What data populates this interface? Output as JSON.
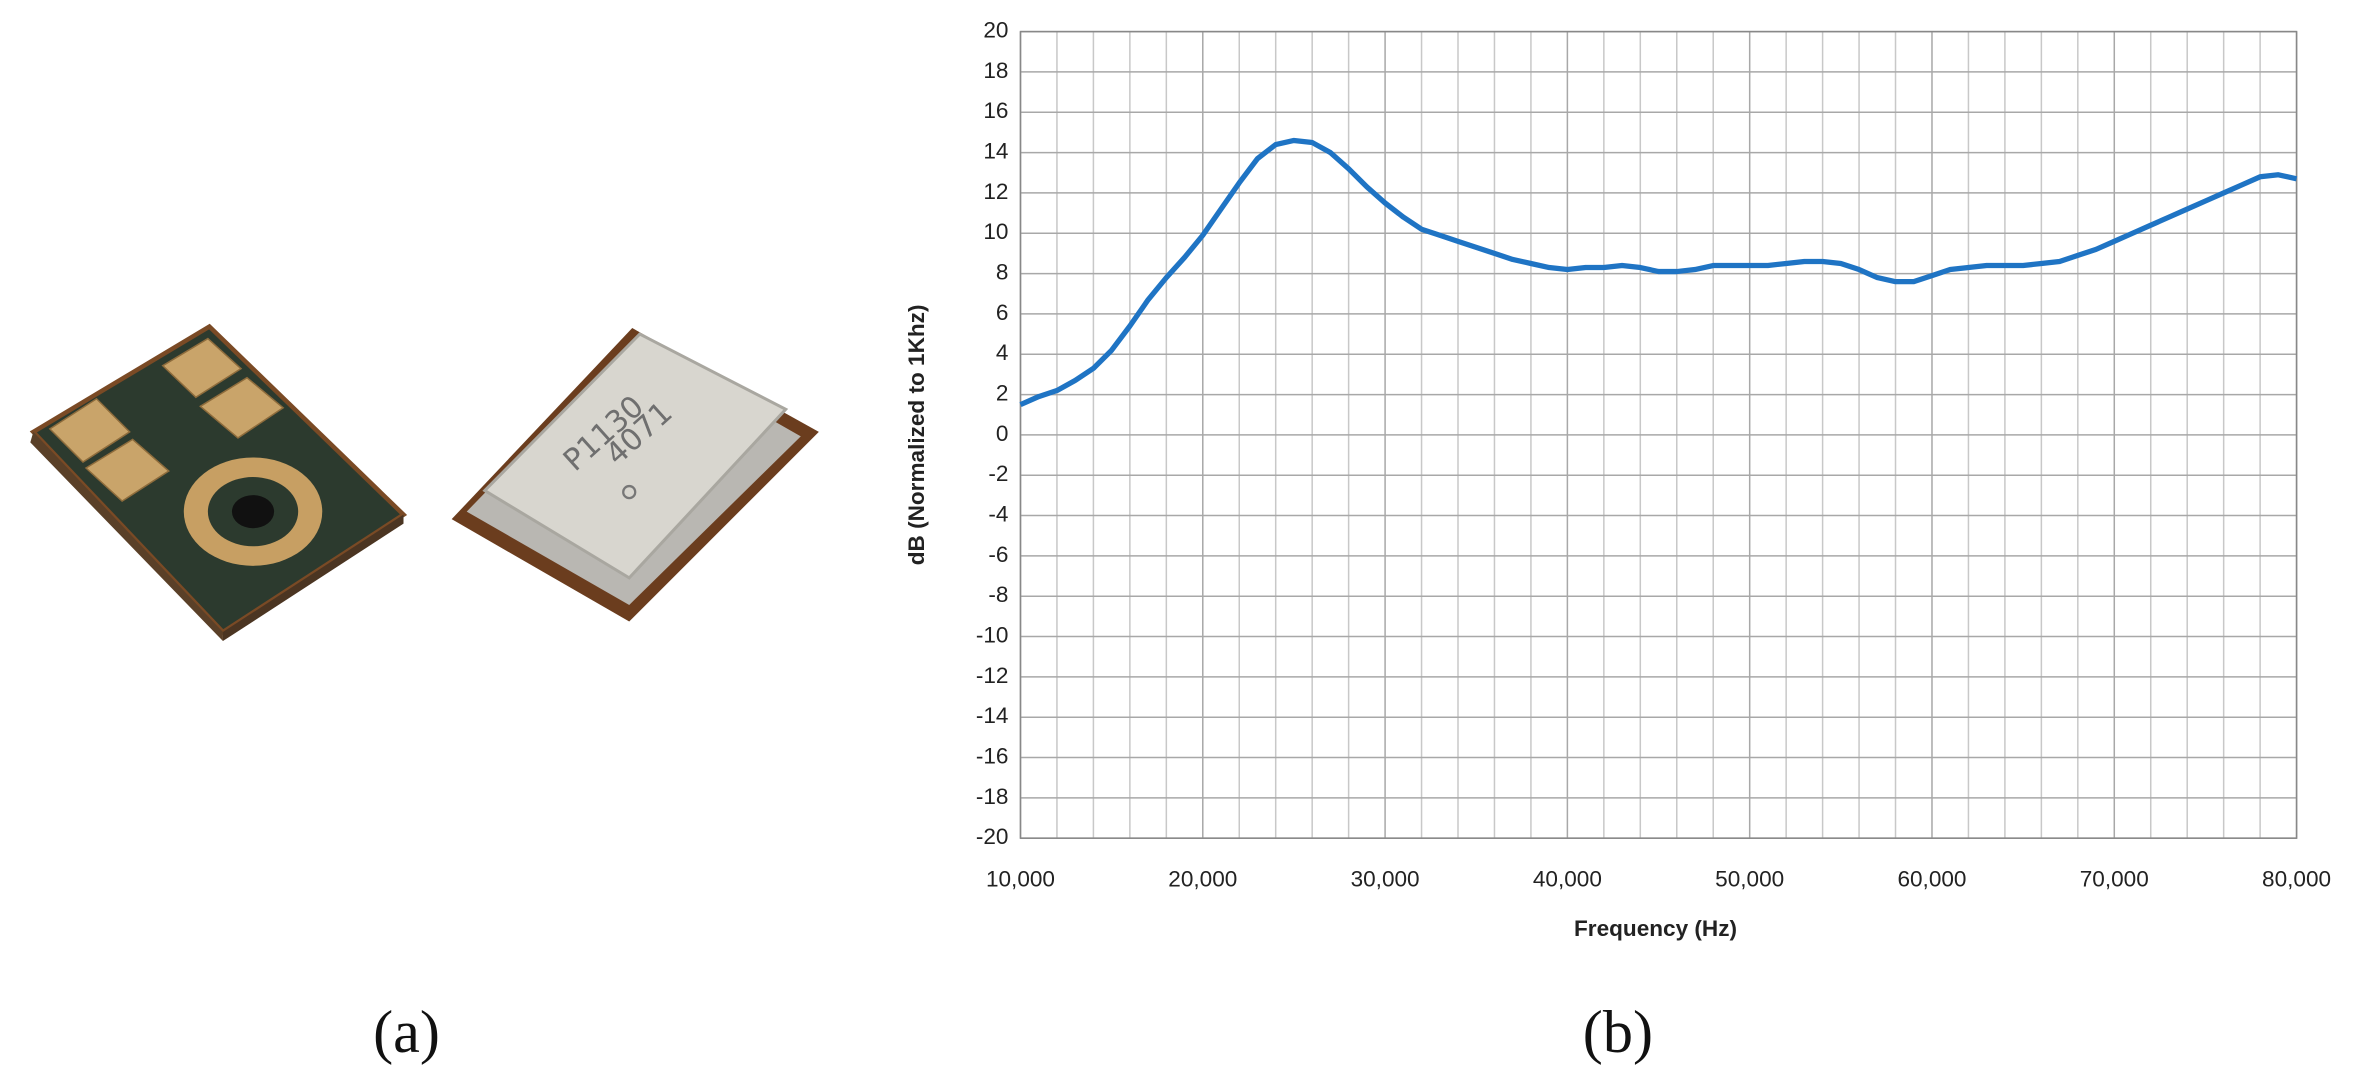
{
  "figure": {
    "panel_labels": [
      "(a)",
      "(b)"
    ],
    "device_markings": [
      "P1130",
      "4071"
    ]
  },
  "chart_data": {
    "type": "line",
    "xlabel": "Frequency (Hz)",
    "ylabel": "dB (Normalized to 1Khz)",
    "x": [
      10000,
      11000,
      12000,
      13000,
      14000,
      15000,
      16000,
      17000,
      18000,
      19000,
      20000,
      21000,
      22000,
      23000,
      24000,
      25000,
      26000,
      27000,
      28000,
      29000,
      30000,
      31000,
      32000,
      33000,
      34000,
      35000,
      36000,
      37000,
      38000,
      39000,
      40000,
      41000,
      42000,
      43000,
      44000,
      45000,
      46000,
      47000,
      48000,
      49000,
      50000,
      51000,
      52000,
      53000,
      54000,
      55000,
      56000,
      57000,
      58000,
      59000,
      60000,
      61000,
      62000,
      63000,
      64000,
      65000,
      66000,
      67000,
      68000,
      69000,
      70000,
      71000,
      72000,
      73000,
      74000,
      75000,
      76000,
      77000,
      78000,
      79000,
      80000
    ],
    "series": [
      {
        "color": "#1f74c4",
        "values": [
          1.5,
          1.9,
          2.2,
          2.7,
          3.3,
          4.2,
          5.4,
          6.7,
          7.8,
          8.8,
          9.9,
          11.2,
          12.5,
          13.7,
          14.4,
          14.6,
          14.5,
          14.0,
          13.2,
          12.3,
          11.5,
          10.8,
          10.2,
          9.9,
          9.6,
          9.3,
          9.0,
          8.7,
          8.5,
          8.3,
          8.2,
          8.3,
          8.3,
          8.4,
          8.3,
          8.1,
          8.1,
          8.2,
          8.4,
          8.4,
          8.4,
          8.4,
          8.5,
          8.6,
          8.6,
          8.5,
          8.2,
          7.8,
          7.6,
          7.6,
          7.9,
          8.2,
          8.3,
          8.4,
          8.4,
          8.4,
          8.5,
          8.6,
          8.9,
          9.2,
          9.6,
          10.0,
          10.4,
          10.8,
          11.2,
          11.6,
          12.0,
          12.4,
          12.8,
          12.9,
          12.7
        ]
      }
    ],
    "xlim": [
      10000,
      80000
    ],
    "xticks": [
      {
        "value": 10000,
        "label": "10,000"
      },
      {
        "value": 20000,
        "label": "20,000"
      },
      {
        "value": 30000,
        "label": "30,000"
      },
      {
        "value": 40000,
        "label": "40,000"
      },
      {
        "value": 50000,
        "label": "50,000"
      },
      {
        "value": 60000,
        "label": "60,000"
      },
      {
        "value": 70000,
        "label": "70,000"
      },
      {
        "value": 80000,
        "label": "80,000"
      }
    ],
    "xminorticks": [
      12000,
      14000,
      16000,
      18000,
      22000,
      24000,
      26000,
      28000,
      32000,
      34000,
      36000,
      38000,
      42000,
      44000,
      46000,
      48000,
      52000,
      54000,
      56000,
      58000,
      62000,
      64000,
      66000,
      68000,
      72000,
      74000,
      76000,
      78000
    ],
    "ylim": [
      -20,
      20
    ],
    "yticks": [
      -20,
      -18,
      -16,
      -14,
      -12,
      -10,
      -8,
      -6,
      -4,
      -2,
      0,
      2,
      4,
      6,
      8,
      10,
      12,
      14,
      16,
      18,
      20
    ],
    "grid": true
  }
}
